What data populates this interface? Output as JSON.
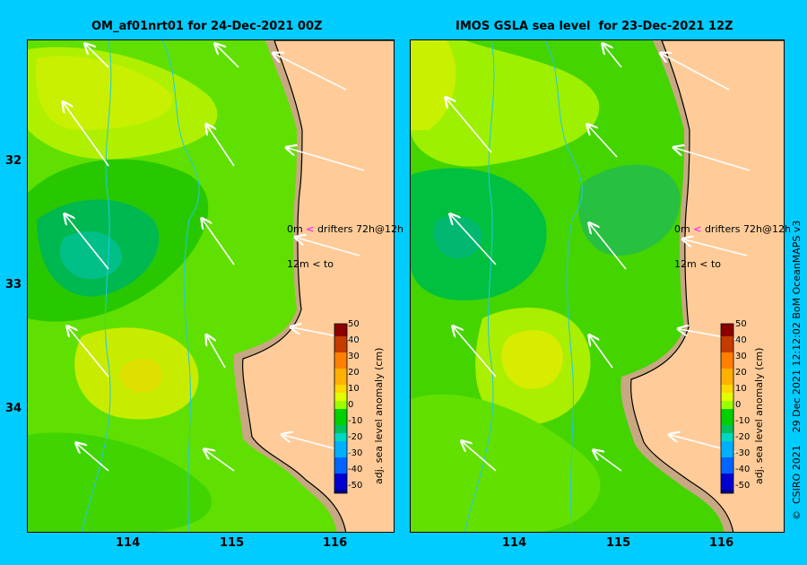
{
  "left": {
    "title": "OM_af01nrt01 for 24-Dec-2021 00Z",
    "drifter_line1_depth": "0m",
    "drifter_line1_arrow": "<",
    "drifter_line1_text": "drifters 72h@12h",
    "drifter_line2_depth": "12m",
    "drifter_line2_arrow": "<",
    "drifter_line2_text": "to"
  },
  "right": {
    "title": "IMOS GSLA sea level  for 23-Dec-2021 12Z",
    "drifter_line1_depth": "0m",
    "drifter_line1_arrow": "<",
    "drifter_line1_text": "drifters 72h@12h",
    "drifter_line2_depth": "12m",
    "drifter_line2_arrow": "<",
    "drifter_line2_text": "to"
  },
  "lat_labels": [
    "32",
    "33",
    "34"
  ],
  "lon_labels": [
    "114",
    "115",
    "116"
  ],
  "colorbar": {
    "title": "adj. sea level anomaly (cm)",
    "ticks": [
      "50",
      "40",
      "30",
      "20",
      "10",
      "0",
      "-10",
      "-20",
      "-30",
      "-40",
      "-50"
    ],
    "colors": [
      "#8b0000",
      "#c43c00",
      "#ff7f00",
      "#ffb000",
      "#ffd800",
      "#e0ff00",
      "#9cff00",
      "#00d000",
      "#00c060",
      "#00d8c0",
      "#00b0ff",
      "#0064ff",
      "#0000d0",
      "#00008b"
    ]
  },
  "credit": "©  CSIRO 2021    29 Dec 2021 12:12:02 BoM OceanMAPS v3",
  "colors": {
    "background": "#00ccff",
    "land": "#ffcc99",
    "shelf": "#c8a882",
    "drifter_surface": "#ff00ff",
    "drifter_deep": "#000000"
  }
}
